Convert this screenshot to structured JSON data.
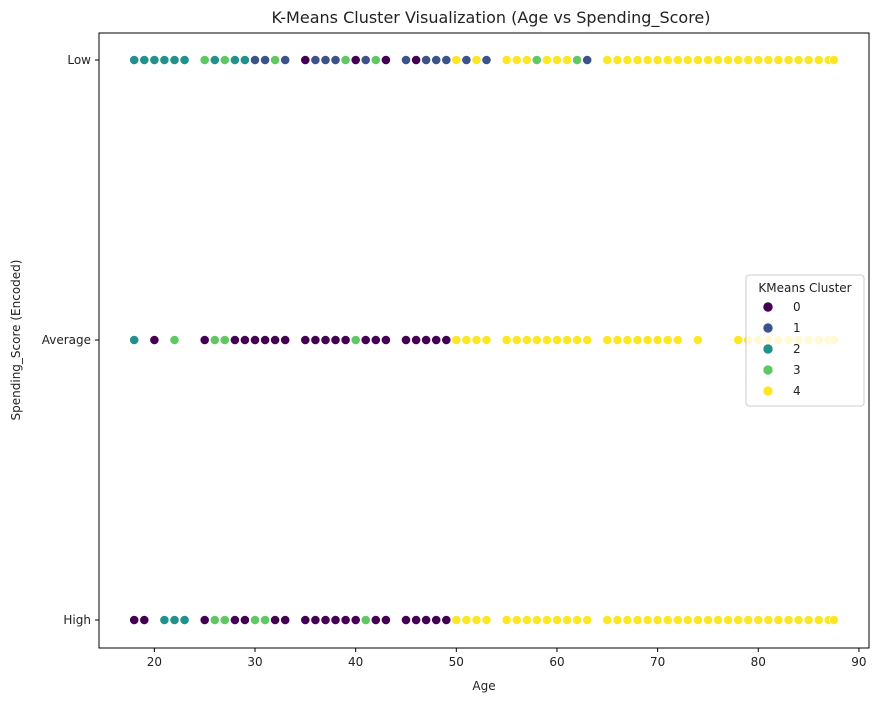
{
  "chart_data": {
    "type": "scatter",
    "title": "K-Means Cluster Visualization (Age vs Spending_Score)",
    "xlabel": "Age",
    "ylabel": "Spending_Score (Encoded)",
    "xlim": [
      14.5,
      91
    ],
    "x_ticks": [
      20,
      30,
      40,
      50,
      60,
      70,
      80,
      90
    ],
    "y_categories": [
      "Low",
      "Average",
      "High"
    ],
    "grid": false,
    "legend": {
      "title": "KMeans Cluster",
      "placement": "center-right",
      "entries": [
        "0",
        "1",
        "2",
        "3",
        "4"
      ]
    },
    "series": [
      {
        "name": "0",
        "color": "#440154",
        "points": [
          {
            "x": 35,
            "y": "Low"
          },
          {
            "x": 43,
            "y": "Low"
          },
          {
            "x": 40,
            "y": "Low"
          },
          {
            "x": 46,
            "y": "Low"
          },
          {
            "x": 20,
            "y": "Average"
          },
          {
            "x": 25,
            "y": "Average"
          },
          {
            "x": 28,
            "y": "Average"
          },
          {
            "x": 29,
            "y": "Average"
          },
          {
            "x": 30,
            "y": "Average"
          },
          {
            "x": 31,
            "y": "Average"
          },
          {
            "x": 32,
            "y": "Average"
          },
          {
            "x": 33,
            "y": "Average"
          },
          {
            "x": 35,
            "y": "Average"
          },
          {
            "x": 36,
            "y": "Average"
          },
          {
            "x": 37,
            "y": "Average"
          },
          {
            "x": 38,
            "y": "Average"
          },
          {
            "x": 39,
            "y": "Average"
          },
          {
            "x": 41,
            "y": "Average"
          },
          {
            "x": 42,
            "y": "Average"
          },
          {
            "x": 43,
            "y": "Average"
          },
          {
            "x": 45,
            "y": "Average"
          },
          {
            "x": 46,
            "y": "Average"
          },
          {
            "x": 47,
            "y": "Average"
          },
          {
            "x": 48,
            "y": "Average"
          },
          {
            "x": 49,
            "y": "Average"
          },
          {
            "x": 18,
            "y": "High"
          },
          {
            "x": 19,
            "y": "High"
          },
          {
            "x": 25,
            "y": "High"
          },
          {
            "x": 28,
            "y": "High"
          },
          {
            "x": 29,
            "y": "High"
          },
          {
            "x": 32,
            "y": "High"
          },
          {
            "x": 33,
            "y": "High"
          },
          {
            "x": 35,
            "y": "High"
          },
          {
            "x": 36,
            "y": "High"
          },
          {
            "x": 37,
            "y": "High"
          },
          {
            "x": 38,
            "y": "High"
          },
          {
            "x": 39,
            "y": "High"
          },
          {
            "x": 40,
            "y": "High"
          },
          {
            "x": 42,
            "y": "High"
          },
          {
            "x": 43,
            "y": "High"
          },
          {
            "x": 45,
            "y": "High"
          },
          {
            "x": 46,
            "y": "High"
          },
          {
            "x": 47,
            "y": "High"
          },
          {
            "x": 48,
            "y": "High"
          },
          {
            "x": 49,
            "y": "High"
          }
        ]
      },
      {
        "name": "1",
        "color": "#3b528b",
        "points": [
          {
            "x": 30,
            "y": "Low"
          },
          {
            "x": 31,
            "y": "Low"
          },
          {
            "x": 33,
            "y": "Low"
          },
          {
            "x": 36,
            "y": "Low"
          },
          {
            "x": 37,
            "y": "Low"
          },
          {
            "x": 38,
            "y": "Low"
          },
          {
            "x": 41,
            "y": "Low"
          },
          {
            "x": 45,
            "y": "Low"
          },
          {
            "x": 47,
            "y": "Low"
          },
          {
            "x": 48,
            "y": "Low"
          },
          {
            "x": 49,
            "y": "Low"
          },
          {
            "x": 51,
            "y": "Low"
          },
          {
            "x": 53,
            "y": "Low"
          },
          {
            "x": 63,
            "y": "Low"
          }
        ]
      },
      {
        "name": "2",
        "color": "#21918c",
        "points": [
          {
            "x": 18,
            "y": "Low"
          },
          {
            "x": 19,
            "y": "Low"
          },
          {
            "x": 20,
            "y": "Low"
          },
          {
            "x": 21,
            "y": "Low"
          },
          {
            "x": 22,
            "y": "Low"
          },
          {
            "x": 23,
            "y": "Low"
          },
          {
            "x": 26,
            "y": "Low"
          },
          {
            "x": 28,
            "y": "Low"
          },
          {
            "x": 29,
            "y": "Low"
          },
          {
            "x": 18,
            "y": "Average"
          },
          {
            "x": 21,
            "y": "High"
          },
          {
            "x": 22,
            "y": "High"
          },
          {
            "x": 23,
            "y": "High"
          }
        ]
      },
      {
        "name": "3",
        "color": "#5ec962",
        "points": [
          {
            "x": 25,
            "y": "Low"
          },
          {
            "x": 27,
            "y": "Low"
          },
          {
            "x": 32,
            "y": "Low"
          },
          {
            "x": 39,
            "y": "Low"
          },
          {
            "x": 42,
            "y": "Low"
          },
          {
            "x": 58,
            "y": "Low"
          },
          {
            "x": 62,
            "y": "Low"
          },
          {
            "x": 22,
            "y": "Average"
          },
          {
            "x": 26,
            "y": "Average"
          },
          {
            "x": 27,
            "y": "Average"
          },
          {
            "x": 40,
            "y": "Average"
          },
          {
            "x": 26,
            "y": "High"
          },
          {
            "x": 27,
            "y": "High"
          },
          {
            "x": 30,
            "y": "High"
          },
          {
            "x": 31,
            "y": "High"
          },
          {
            "x": 41,
            "y": "High"
          }
        ]
      },
      {
        "name": "4",
        "color": "#fde725",
        "points": [
          {
            "x": 50,
            "y": "Low"
          },
          {
            "x": 52,
            "y": "Low"
          },
          {
            "x": 55,
            "y": "Low"
          },
          {
            "x": 56,
            "y": "Low"
          },
          {
            "x": 57,
            "y": "Low"
          },
          {
            "x": 59,
            "y": "Low"
          },
          {
            "x": 60,
            "y": "Low"
          },
          {
            "x": 61,
            "y": "Low"
          },
          {
            "x": 65,
            "y": "Low"
          },
          {
            "x": 66,
            "y": "Low"
          },
          {
            "x": 67,
            "y": "Low"
          },
          {
            "x": 68,
            "y": "Low"
          },
          {
            "x": 69,
            "y": "Low"
          },
          {
            "x": 70,
            "y": "Low"
          },
          {
            "x": 71,
            "y": "Low"
          },
          {
            "x": 72,
            "y": "Low"
          },
          {
            "x": 73,
            "y": "Low"
          },
          {
            "x": 74,
            "y": "Low"
          },
          {
            "x": 75,
            "y": "Low"
          },
          {
            "x": 76,
            "y": "Low"
          },
          {
            "x": 77,
            "y": "Low"
          },
          {
            "x": 78,
            "y": "Low"
          },
          {
            "x": 79,
            "y": "Low"
          },
          {
            "x": 80,
            "y": "Low"
          },
          {
            "x": 81,
            "y": "Low"
          },
          {
            "x": 82,
            "y": "Low"
          },
          {
            "x": 83,
            "y": "Low"
          },
          {
            "x": 84,
            "y": "Low"
          },
          {
            "x": 85,
            "y": "Low"
          },
          {
            "x": 86,
            "y": "Low"
          },
          {
            "x": 87,
            "y": "Low"
          },
          {
            "x": 87.5,
            "y": "Low"
          },
          {
            "x": 50,
            "y": "Average"
          },
          {
            "x": 51,
            "y": "Average"
          },
          {
            "x": 52,
            "y": "Average"
          },
          {
            "x": 53,
            "y": "Average"
          },
          {
            "x": 55,
            "y": "Average"
          },
          {
            "x": 56,
            "y": "Average"
          },
          {
            "x": 57,
            "y": "Average"
          },
          {
            "x": 58,
            "y": "Average"
          },
          {
            "x": 59,
            "y": "Average"
          },
          {
            "x": 60,
            "y": "Average"
          },
          {
            "x": 61,
            "y": "Average"
          },
          {
            "x": 62,
            "y": "Average"
          },
          {
            "x": 63,
            "y": "Average"
          },
          {
            "x": 65,
            "y": "Average"
          },
          {
            "x": 66,
            "y": "Average"
          },
          {
            "x": 67,
            "y": "Average"
          },
          {
            "x": 68,
            "y": "Average"
          },
          {
            "x": 69,
            "y": "Average"
          },
          {
            "x": 70,
            "y": "Average"
          },
          {
            "x": 71,
            "y": "Average"
          },
          {
            "x": 72,
            "y": "Average"
          },
          {
            "x": 74,
            "y": "Average"
          },
          {
            "x": 78,
            "y": "Average"
          },
          {
            "x": 79,
            "y": "Average"
          },
          {
            "x": 80,
            "y": "Average"
          },
          {
            "x": 81,
            "y": "Average"
          },
          {
            "x": 82,
            "y": "Average"
          },
          {
            "x": 83,
            "y": "Average"
          },
          {
            "x": 84,
            "y": "Average"
          },
          {
            "x": 85,
            "y": "Average"
          },
          {
            "x": 86,
            "y": "Average"
          },
          {
            "x": 87,
            "y": "Average"
          },
          {
            "x": 87.5,
            "y": "Average"
          },
          {
            "x": 50,
            "y": "High"
          },
          {
            "x": 51,
            "y": "High"
          },
          {
            "x": 52,
            "y": "High"
          },
          {
            "x": 53,
            "y": "High"
          },
          {
            "x": 55,
            "y": "High"
          },
          {
            "x": 56,
            "y": "High"
          },
          {
            "x": 57,
            "y": "High"
          },
          {
            "x": 58,
            "y": "High"
          },
          {
            "x": 59,
            "y": "High"
          },
          {
            "x": 60,
            "y": "High"
          },
          {
            "x": 61,
            "y": "High"
          },
          {
            "x": 62,
            "y": "High"
          },
          {
            "x": 63,
            "y": "High"
          },
          {
            "x": 65,
            "y": "High"
          },
          {
            "x": 66,
            "y": "High"
          },
          {
            "x": 67,
            "y": "High"
          },
          {
            "x": 68,
            "y": "High"
          },
          {
            "x": 69,
            "y": "High"
          },
          {
            "x": 70,
            "y": "High"
          },
          {
            "x": 71,
            "y": "High"
          },
          {
            "x": 72,
            "y": "High"
          },
          {
            "x": 73,
            "y": "High"
          },
          {
            "x": 74,
            "y": "High"
          },
          {
            "x": 75,
            "y": "High"
          },
          {
            "x": 76,
            "y": "High"
          },
          {
            "x": 77,
            "y": "High"
          },
          {
            "x": 78,
            "y": "High"
          },
          {
            "x": 79,
            "y": "High"
          },
          {
            "x": 80,
            "y": "High"
          },
          {
            "x": 81,
            "y": "High"
          },
          {
            "x": 82,
            "y": "High"
          },
          {
            "x": 83,
            "y": "High"
          },
          {
            "x": 84,
            "y": "High"
          },
          {
            "x": 85,
            "y": "High"
          },
          {
            "x": 86,
            "y": "High"
          },
          {
            "x": 87,
            "y": "High"
          },
          {
            "x": 87.5,
            "y": "High"
          }
        ]
      }
    ]
  }
}
